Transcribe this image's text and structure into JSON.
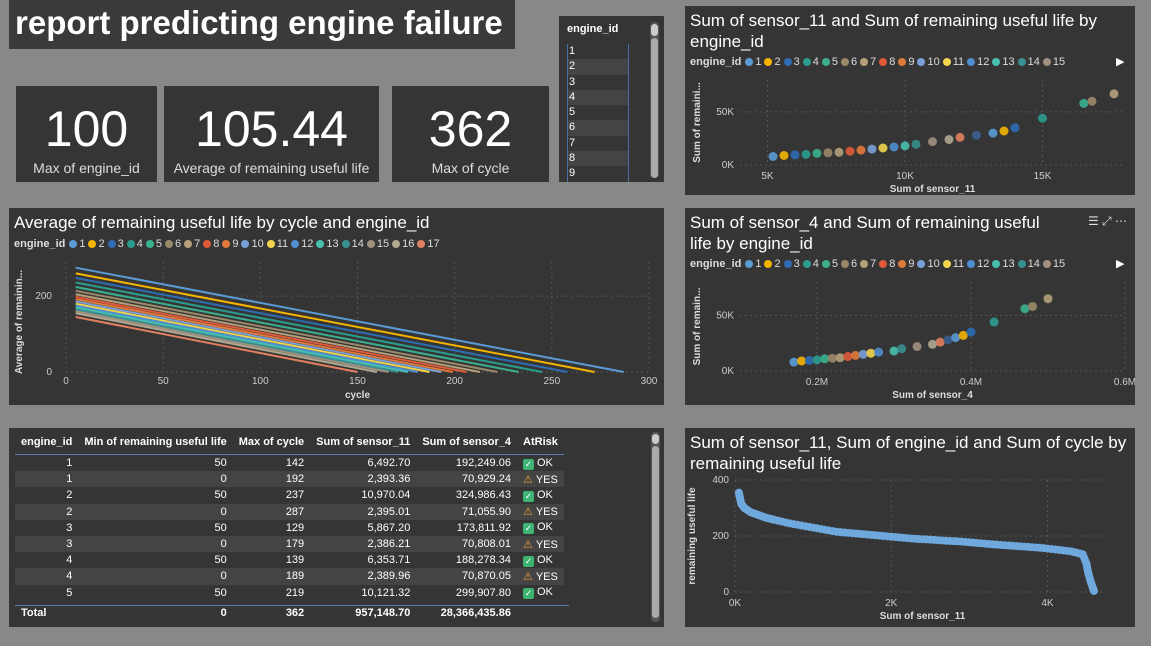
{
  "report_title": "report predicting engine failure",
  "kpis": [
    {
      "value": "100",
      "label": "Max of engine_id"
    },
    {
      "value": "105.44",
      "label": "Average of remaining useful life"
    },
    {
      "value": "362",
      "label": "Max of cycle"
    }
  ],
  "slicer": {
    "header": "engine_id",
    "items": [
      "1",
      "2",
      "3",
      "4",
      "5",
      "6",
      "7",
      "8",
      "9"
    ]
  },
  "legend_label": "engine_id",
  "legend_colors": [
    "#5b9bd5",
    "#f4b400",
    "#2e6db4",
    "#2a9d8f",
    "#3ab08f",
    "#9a8a6a",
    "#b5a07a",
    "#e05a3a",
    "#e07a3a",
    "#7aa0d8",
    "#f2d44e",
    "#4f8fd0",
    "#48c0b0",
    "#3a8f8f",
    "#a09080",
    "#b0a890",
    "#e08060",
    "#3a6090"
  ],
  "scatter1": {
    "title": "Sum of sensor_11 and Sum of remaining useful life by engine_id",
    "legend_items": [
      "1",
      "2",
      "3",
      "4",
      "5",
      "6",
      "7",
      "8",
      "9",
      "10",
      "11",
      "12",
      "13",
      "14",
      "15"
    ],
    "chart_data": {
      "type": "scatter",
      "xlabel": "Sum of sensor_11",
      "ylabel": "Sum of remaini...",
      "x_ticks": [
        "5K",
        "10K",
        "15K"
      ],
      "y_ticks": [
        "0K",
        "50K"
      ],
      "xlim": [
        4000,
        18000
      ],
      "ylim": [
        0,
        80000
      ],
      "points": [
        [
          5200,
          8000
        ],
        [
          5600,
          9000
        ],
        [
          6000,
          9500
        ],
        [
          6400,
          10000
        ],
        [
          6800,
          11000
        ],
        [
          7200,
          11500
        ],
        [
          7600,
          12000
        ],
        [
          8000,
          13000
        ],
        [
          8400,
          14000
        ],
        [
          8800,
          15000
        ],
        [
          9200,
          16000
        ],
        [
          9600,
          17000
        ],
        [
          10000,
          18000
        ],
        [
          10400,
          19500
        ],
        [
          11000,
          22000
        ],
        [
          11600,
          24000
        ],
        [
          12000,
          26000
        ],
        [
          12600,
          28000
        ],
        [
          13200,
          30000
        ],
        [
          13600,
          32000
        ],
        [
          14000,
          35000
        ],
        [
          15000,
          44000
        ],
        [
          16500,
          58000
        ],
        [
          16800,
          60000
        ],
        [
          17600,
          67000
        ]
      ]
    }
  },
  "line_chart": {
    "title": "Average of remaining useful life by cycle and engine_id",
    "legend_items": [
      "1",
      "2",
      "3",
      "4",
      "5",
      "6",
      "7",
      "8",
      "9",
      "10",
      "11",
      "12",
      "13",
      "14",
      "15",
      "16",
      "17"
    ],
    "chart_data": {
      "type": "line",
      "xlabel": "cycle",
      "ylabel": "Average of remainin...",
      "x_ticks": [
        "0",
        "50",
        "100",
        "150",
        "200",
        "250",
        "300"
      ],
      "y_ticks": [
        "0",
        "200"
      ],
      "xlim": [
        0,
        300
      ],
      "ylim": [
        0,
        290
      ],
      "series": [
        {
          "start": 275,
          "end_cycle": 287
        },
        {
          "start": 260,
          "end_cycle": 272
        },
        {
          "start": 248,
          "end_cycle": 258
        },
        {
          "start": 236,
          "end_cycle": 245
        },
        {
          "start": 224,
          "end_cycle": 233
        },
        {
          "start": 214,
          "end_cycle": 222
        },
        {
          "start": 205,
          "end_cycle": 213
        },
        {
          "start": 198,
          "end_cycle": 206
        },
        {
          "start": 192,
          "end_cycle": 199
        },
        {
          "start": 186,
          "end_cycle": 193
        },
        {
          "start": 180,
          "end_cycle": 187
        },
        {
          "start": 175,
          "end_cycle": 181
        },
        {
          "start": 170,
          "end_cycle": 176
        },
        {
          "start": 165,
          "end_cycle": 171
        },
        {
          "start": 160,
          "end_cycle": 166
        },
        {
          "start": 155,
          "end_cycle": 160
        },
        {
          "start": 145,
          "end_cycle": 150
        }
      ]
    }
  },
  "scatter2": {
    "title": "Sum of sensor_4 and Sum of remaining useful life by engine_id",
    "legend_items": [
      "1",
      "2",
      "3",
      "4",
      "5",
      "6",
      "7",
      "8",
      "9",
      "10",
      "11",
      "12",
      "13",
      "14",
      "15"
    ],
    "chart_data": {
      "type": "scatter",
      "xlabel": "Sum of sensor_4",
      "ylabel": "Sum of remain...",
      "x_ticks": [
        "0.2M",
        "0.4M",
        "0.6M"
      ],
      "y_ticks": [
        "0K",
        "50K"
      ],
      "xlim": [
        0.1,
        0.6
      ],
      "ylim": [
        0,
        80000
      ],
      "points": [
        [
          0.17,
          8000
        ],
        [
          0.18,
          9000
        ],
        [
          0.19,
          9500
        ],
        [
          0.2,
          10000
        ],
        [
          0.21,
          11000
        ],
        [
          0.22,
          11500
        ],
        [
          0.23,
          12000
        ],
        [
          0.24,
          13000
        ],
        [
          0.25,
          14000
        ],
        [
          0.26,
          15000
        ],
        [
          0.27,
          16000
        ],
        [
          0.28,
          17000
        ],
        [
          0.3,
          18000
        ],
        [
          0.31,
          20000
        ],
        [
          0.33,
          22000
        ],
        [
          0.35,
          24000
        ],
        [
          0.36,
          26000
        ],
        [
          0.37,
          28000
        ],
        [
          0.38,
          30000
        ],
        [
          0.39,
          32000
        ],
        [
          0.4,
          35000
        ],
        [
          0.43,
          44000
        ],
        [
          0.47,
          56000
        ],
        [
          0.48,
          58000
        ],
        [
          0.5,
          65000
        ]
      ]
    }
  },
  "table": {
    "headers": [
      "engine_id",
      "Min of remaining useful life",
      "Max of cycle",
      "Sum of sensor_11",
      "Sum of sensor_4",
      "AtRisk"
    ],
    "rows": [
      [
        "1",
        "50",
        "142",
        "6,492.70",
        "192,249.06",
        "OK"
      ],
      [
        "1",
        "0",
        "192",
        "2,393.36",
        "70,929.24",
        "YES"
      ],
      [
        "2",
        "50",
        "237",
        "10,970.04",
        "324,986.43",
        "OK"
      ],
      [
        "2",
        "0",
        "287",
        "2,395.01",
        "71,055.90",
        "YES"
      ],
      [
        "3",
        "50",
        "129",
        "5,867.20",
        "173,811.92",
        "OK"
      ],
      [
        "3",
        "0",
        "179",
        "2,386.21",
        "70,808.01",
        "YES"
      ],
      [
        "4",
        "50",
        "139",
        "6,353.71",
        "188,278.34",
        "OK"
      ],
      [
        "4",
        "0",
        "189",
        "2,389.96",
        "70,870.05",
        "YES"
      ],
      [
        "5",
        "50",
        "219",
        "10,121.32",
        "299,907.80",
        "OK"
      ]
    ],
    "total": [
      "Total",
      "0",
      "362",
      "957,148.70",
      "28,366,435.86",
      ""
    ]
  },
  "scatter3": {
    "title": "Sum of sensor_11, Sum of engine_id and Sum of cycle by remaining useful life",
    "chart_data": {
      "type": "scatter",
      "xlabel": "Sum of sensor_11",
      "ylabel": "remaining useful life",
      "x_ticks": [
        "0K",
        "2K",
        "4K"
      ],
      "y_ticks": [
        "0",
        "200",
        "400"
      ],
      "xlim": [
        0,
        4800
      ],
      "ylim": [
        0,
        400
      ],
      "color": "#6fa8dc"
    }
  }
}
